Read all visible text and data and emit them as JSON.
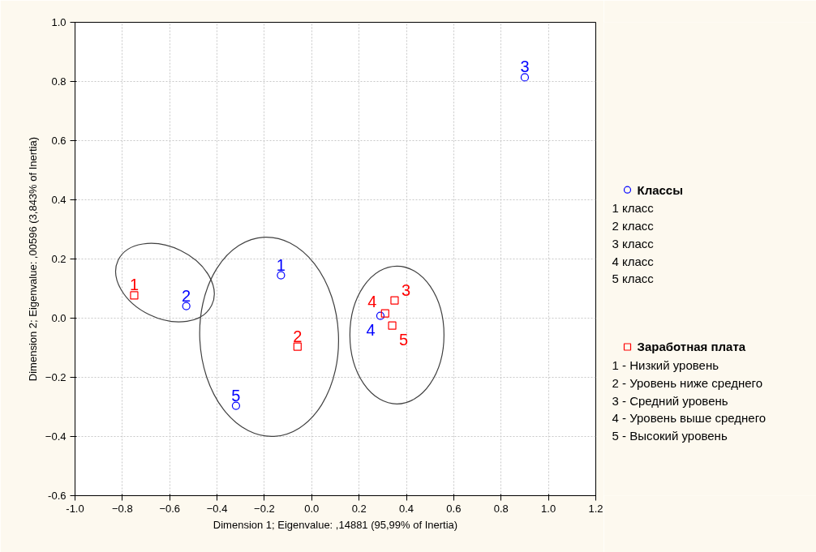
{
  "chart_data": {
    "type": "scatter",
    "xlabel": "Dimension 1; Eigenvalue: ,14881 (95,99% of Inertia)",
    "ylabel": "Dimension 2; Eigenvalue: ,00596 (3,843% of Inertia)",
    "xlim": [
      -1.0,
      1.2
    ],
    "ylim": [
      -0.6,
      1.0
    ],
    "xticks": [
      {
        "value": -1.0,
        "label": "-1.0"
      },
      -0.8,
      -0.6,
      -0.4,
      -0.2,
      {
        "value": 0,
        "label": "0.0"
      },
      0.2,
      0.4,
      0.6,
      0.8,
      {
        "value": 1,
        "label": "1.0"
      },
      1.2
    ],
    "yticks": [
      {
        "value": -0.6,
        "label": "-0.6"
      },
      -0.4,
      -0.2,
      {
        "value": 0,
        "label": "0.0"
      },
      0.2,
      0.4,
      0.6,
      0.8,
      {
        "value": 1,
        "label": "1.0"
      }
    ],
    "grid": true,
    "legend": "right",
    "series": [
      {
        "name": "Классы",
        "color": "#0000ff",
        "marker": "circle",
        "x": [
          -0.13,
          -0.53,
          0.9,
          0.29,
          -0.32
        ],
        "values": [
          0.145,
          0.041,
          0.814,
          0.008,
          -0.296
        ]
      },
      {
        "name": "Заработная плата",
        "color": "#ff0000",
        "marker": "square",
        "x": [
          -0.75,
          -0.06,
          0.35,
          0.31,
          0.34
        ],
        "values": [
          0.077,
          -0.096,
          0.06,
          0.016,
          -0.025
        ]
      }
    ],
    "annotations": [
      {
        "text": "1",
        "x": -0.13,
        "y": 0.145
      },
      {
        "text": "2",
        "x": -0.53,
        "y": 0.041
      },
      {
        "text": "3",
        "x": 0.9,
        "y": 0.814
      },
      {
        "text": "4",
        "x": 0.29,
        "y": 0.008
      },
      {
        "text": "5",
        "x": -0.32,
        "y": -0.296
      },
      {
        "text": "1",
        "x": -0.75,
        "y": 0.077
      },
      {
        "text": "2",
        "x": -0.06,
        "y": -0.096
      },
      {
        "text": "3",
        "x": 0.35,
        "y": 0.06
      },
      {
        "text": "4",
        "x": 0.31,
        "y": 0.016
      },
      {
        "text": "5",
        "x": 0.34,
        "y": -0.025
      },
      "1 класс",
      "2 класс",
      "3 класс",
      "4 класс",
      "5 класс",
      "1 - Низкий уровень",
      "2 - Уровень ниже среднего",
      "3 - Средний уровень",
      "4 - Уровень выше среднего",
      "5 - Высокий уровень"
    ]
  }
}
